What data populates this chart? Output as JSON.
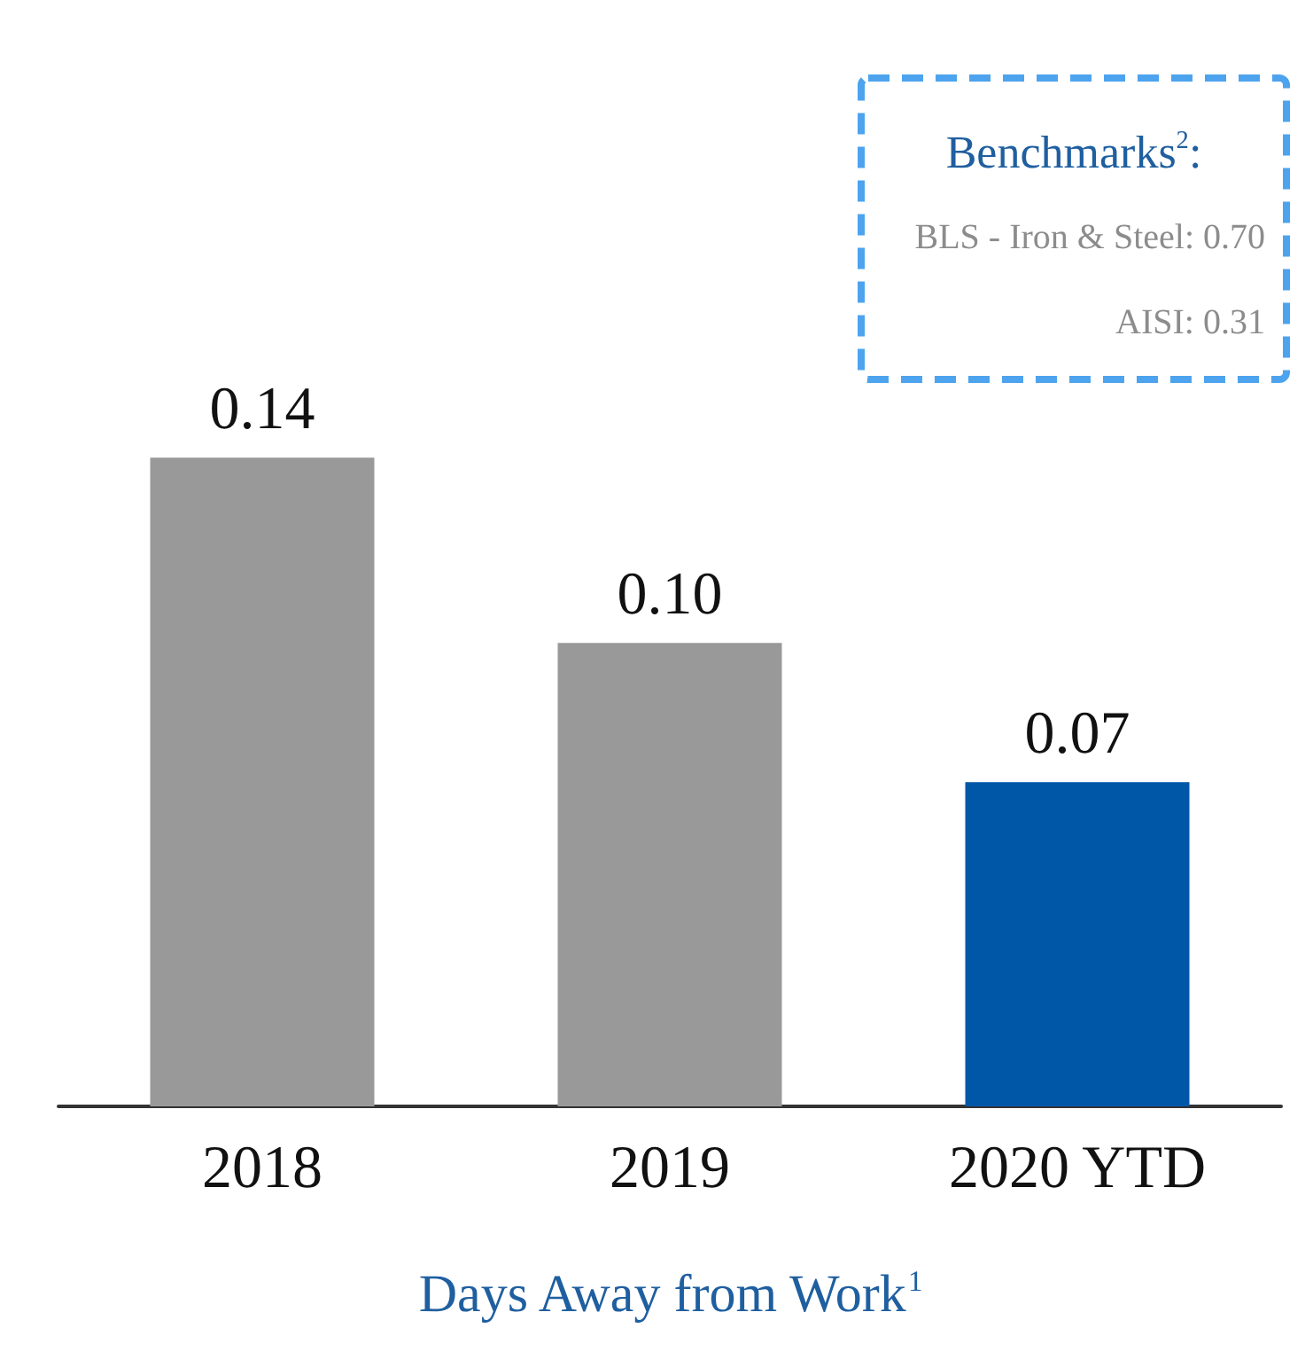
{
  "chart_data": {
    "type": "bar",
    "xlabel": "Days Away from Work$^{1}$",
    "categories": [
      "2018",
      "2019",
      "2020 YTD"
    ],
    "values": [
      0.14,
      0.1,
      0.07
    ],
    "colors": [
      "#999999",
      "#999999",
      "#0057a8"
    ],
    "value_labels": [
      "0.14",
      "0.10",
      "0.07"
    ],
    "annotations": [
      "Benchmarks$^{2}$:",
      "BLS - Iron & Steel: 0.70",
      "AISI: 0.31"
    ]
  }
}
